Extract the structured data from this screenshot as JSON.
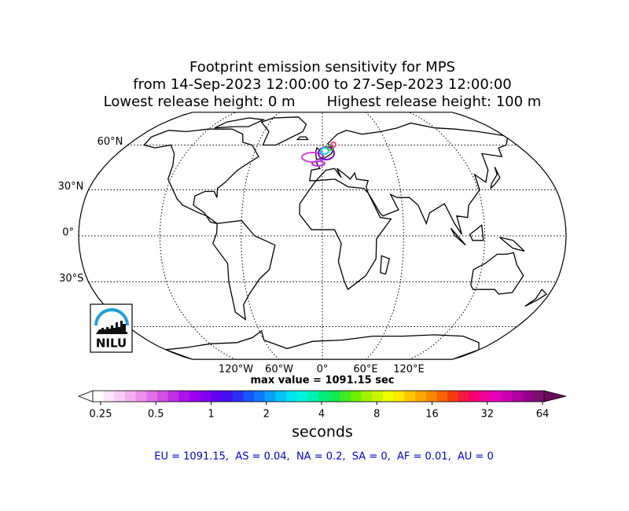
{
  "header": {
    "title_lines": [
      "Footprint emission sensitivity for MPS",
      "from 14-Sep-2023 12:00:00 to 27-Sep-2023 12:00:00",
      "Lowest release height: 0 m       Highest release height: 100 m"
    ]
  },
  "map": {
    "lat_ticks": [
      {
        "value": 60,
        "label": "60°N"
      },
      {
        "value": 30,
        "label": "30°N"
      },
      {
        "value": 0,
        "label": "0°"
      },
      {
        "value": -30,
        "label": "30°S"
      }
    ],
    "lon_ticks": [
      {
        "value": -120,
        "label": "120°W"
      },
      {
        "value": -60,
        "label": "60°W"
      },
      {
        "value": 0,
        "label": "0°"
      },
      {
        "value": 60,
        "label": "60°E"
      },
      {
        "value": 120,
        "label": "120°E"
      }
    ],
    "max_value_text": "max value = 1091.15 sec",
    "logo_text": "NILU"
  },
  "colorbar": {
    "log_scale": true,
    "ticks": [
      0.25,
      0.5,
      1,
      2,
      4,
      8,
      16,
      32,
      64
    ],
    "label": "seconds",
    "colors": [
      "#ffffff",
      "#fde6fb",
      "#f9ccf6",
      "#f3b0f1",
      "#eb90ec",
      "#e070e8",
      "#d24ee6",
      "#c22ee6",
      "#b010ea",
      "#9a00ee",
      "#8000f0",
      "#6200f0",
      "#4410f0",
      "#2a30f4",
      "#1a55f6",
      "#107af6",
      "#0aa0f6",
      "#04c4f4",
      "#00e4f0",
      "#00f6dc",
      "#00f2b0",
      "#00ee80",
      "#10ea50",
      "#40ea20",
      "#70ee00",
      "#a0f200",
      "#ccf600",
      "#f0fa00",
      "#fee800",
      "#fcc800",
      "#faa800",
      "#f88800",
      "#f66400",
      "#f43c10",
      "#f41840",
      "#f40070",
      "#f0009a",
      "#e600b8",
      "#cc00b0",
      "#b000a0",
      "#94008c",
      "#7a1070"
    ],
    "under_color": "#ffffff",
    "over_color": "#6a0a5a"
  },
  "summary": "EU = 1091.15,  AS = 0.04,  NA = 0.2,  SA = 0,  AF = 0.01,  AU = 0"
}
